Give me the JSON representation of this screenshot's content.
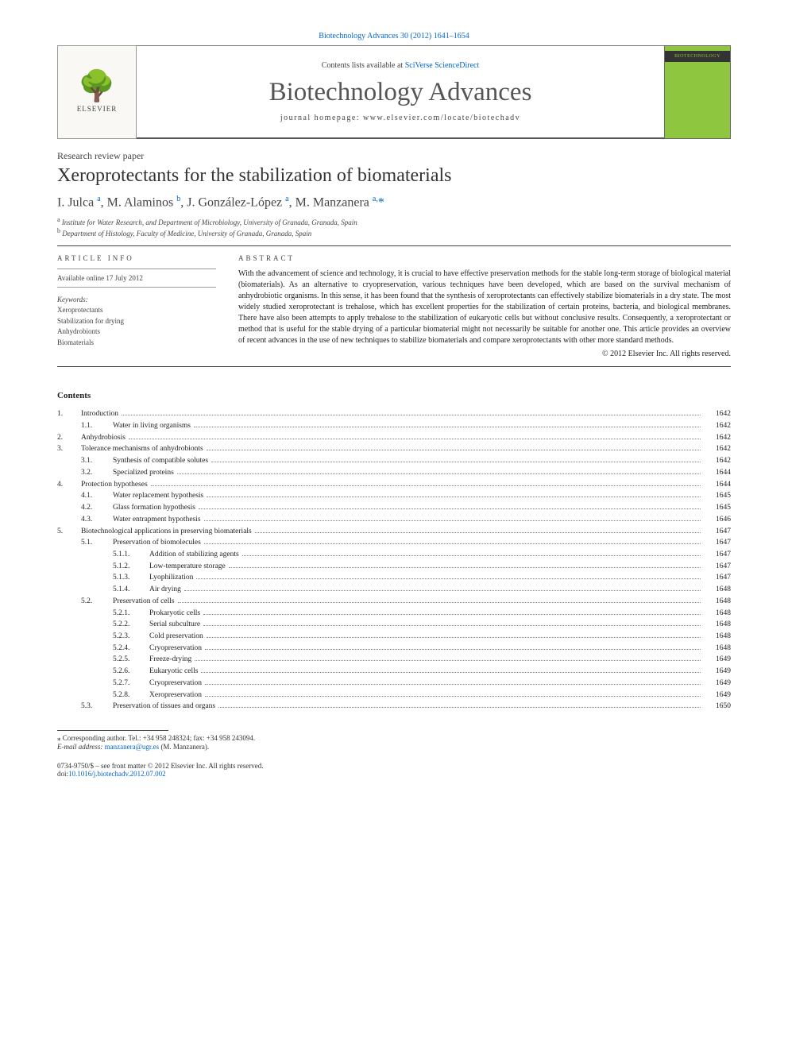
{
  "header_link": "Biotechnology Advances 30 (2012) 1641–1654",
  "contents_line_prefix": "Contents lists available at ",
  "contents_line_link": "SciVerse ScienceDirect",
  "journal_title": "Biotechnology Advances",
  "journal_homepage": "journal homepage: www.elsevier.com/locate/biotechadv",
  "elsevier_name": "ELSEVIER",
  "cover_label": "BIOTECHNOLOGY",
  "article_type": "Research review paper",
  "article_title": "Xeroprotectants for the stabilization of biomaterials",
  "authors_html": "I. Julca <sup>a</sup>, M. Alaminos <sup>b</sup>, J. González-López <sup>a</sup>, M. Manzanera <sup>a,</sup><span class='corr'>*</span>",
  "affiliations": [
    {
      "sup": "a",
      "text": "Institute for Water Research, and Department of Microbiology, University of Granada, Granada, Spain"
    },
    {
      "sup": "b",
      "text": "Department of Histology, Faculty of Medicine, University of Granada, Granada, Spain"
    }
  ],
  "article_info_head": "ARTICLE INFO",
  "abstract_head": "ABSTRACT",
  "available_online": "Available online 17 July 2012",
  "keywords_head": "Keywords:",
  "keywords": [
    "Xeroprotectants",
    "Stabilization for drying",
    "Anhydrobionts",
    "Biomaterials"
  ],
  "abstract_text": "With the advancement of science and technology, it is crucial to have effective preservation methods for the stable long-term storage of biological material (biomaterials). As an alternative to cryopreservation, various techniques have been developed, which are based on the survival mechanism of anhydrobiotic organisms. In this sense, it has been found that the synthesis of xeroprotectants can effectively stabilize biomaterials in a dry state. The most widely studied xeroprotectant is trehalose, which has excellent properties for the stabilization of certain proteins, bacteria, and biological membranes. There have also been attempts to apply trehalose to the stabilization of eukaryotic cells but without conclusive results. Consequently, a xeroprotectant or method that is useful for the stable drying of a particular biomaterial might not necessarily be suitable for another one. This article provides an overview of recent advances in the use of new techniques to stabilize biomaterials and compare xeroprotectants with other more standard methods.",
  "copyright": "© 2012 Elsevier Inc. All rights reserved.",
  "contents_head": "Contents",
  "toc": [
    {
      "level": 1,
      "num": "1.",
      "title": "Introduction",
      "page": "1642"
    },
    {
      "level": 2,
      "num": "1.1.",
      "title": "Water in living organisms",
      "page": "1642"
    },
    {
      "level": 1,
      "num": "2.",
      "title": "Anhydrobiosis",
      "page": "1642"
    },
    {
      "level": 1,
      "num": "3.",
      "title": "Tolerance mechanisms of anhydrobionts",
      "page": "1642"
    },
    {
      "level": 2,
      "num": "3.1.",
      "title": "Synthesis of compatible solutes",
      "page": "1642"
    },
    {
      "level": 2,
      "num": "3.2.",
      "title": "Specialized proteins",
      "page": "1644"
    },
    {
      "level": 1,
      "num": "4.",
      "title": "Protection hypotheses",
      "page": "1644"
    },
    {
      "level": 2,
      "num": "4.1.",
      "title": "Water replacement hypothesis",
      "page": "1645"
    },
    {
      "level": 2,
      "num": "4.2.",
      "title": "Glass formation hypothesis",
      "page": "1645"
    },
    {
      "level": 2,
      "num": "4.3.",
      "title": "Water entrapment hypothesis",
      "page": "1646"
    },
    {
      "level": 1,
      "num": "5.",
      "title": "Biotechnological applications in preserving biomaterials",
      "page": "1647"
    },
    {
      "level": 2,
      "num": "5.1.",
      "title": "Preservation of biomolecules",
      "page": "1647"
    },
    {
      "level": 3,
      "num": "5.1.1.",
      "title": "Addition of stabilizing agents",
      "page": "1647"
    },
    {
      "level": 3,
      "num": "5.1.2.",
      "title": "Low-temperature storage",
      "page": "1647"
    },
    {
      "level": 3,
      "num": "5.1.3.",
      "title": "Lyophilization",
      "page": "1647"
    },
    {
      "level": 3,
      "num": "5.1.4.",
      "title": "Air drying",
      "page": "1648"
    },
    {
      "level": 2,
      "num": "5.2.",
      "title": "Preservation of cells",
      "page": "1648"
    },
    {
      "level": 3,
      "num": "5.2.1.",
      "title": "Prokaryotic cells",
      "page": "1648"
    },
    {
      "level": 3,
      "num": "5.2.2.",
      "title": "Serial subculture",
      "page": "1648"
    },
    {
      "level": 3,
      "num": "5.2.3.",
      "title": "Cold preservation",
      "page": "1648"
    },
    {
      "level": 3,
      "num": "5.2.4.",
      "title": "Cryopreservation",
      "page": "1648"
    },
    {
      "level": 3,
      "num": "5.2.5.",
      "title": "Freeze-drying",
      "page": "1649"
    },
    {
      "level": 3,
      "num": "5.2.6.",
      "title": "Eukaryotic cells",
      "page": "1649"
    },
    {
      "level": 3,
      "num": "5.2.7.",
      "title": "Cryopreservation",
      "page": "1649"
    },
    {
      "level": 3,
      "num": "5.2.8.",
      "title": "Xeropreservation",
      "page": "1649"
    },
    {
      "level": 2,
      "num": "5.3.",
      "title": "Preservation of tissues and organs",
      "page": "1650"
    }
  ],
  "corresponding_label": "⁎ Corresponding author. Tel.: +34 958 248324; fax: +34 958 243094.",
  "email_label": "E-mail address:",
  "email": "manzanera@ugr.es",
  "email_name": "(M. Manzanera).",
  "footer_issn": "0734-9750/$ – see front matter © 2012 Elsevier Inc. All rights reserved.",
  "footer_doi_label": "doi:",
  "footer_doi": "10.1016/j.biotechadv.2012.07.002",
  "colors": {
    "link": "#0066cc",
    "text": "#222222",
    "muted": "#444444",
    "rule": "#444444",
    "cover_green": "#8ec63f"
  }
}
